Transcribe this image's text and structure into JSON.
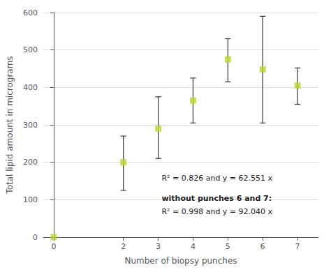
{
  "chart_data": {
    "type": "scatter",
    "xlabel": "Number of biopsy punches",
    "ylabel": "Total lipid amount in micrograms",
    "x": [
      0,
      2,
      3,
      4,
      5,
      6,
      7
    ],
    "values": [
      0,
      200,
      290,
      365,
      475,
      448,
      405
    ],
    "error_low": [
      0,
      75,
      80,
      60,
      60,
      143,
      50
    ],
    "error_high": [
      0,
      70,
      85,
      60,
      55,
      142,
      47
    ],
    "xlim": [
      -0.3,
      7.6
    ],
    "ylim": [
      0,
      600
    ],
    "xticks": [
      0,
      2,
      3,
      4,
      5,
      6,
      7
    ],
    "yticks": [
      0,
      100,
      200,
      300,
      400,
      500,
      600
    ],
    "grid": true,
    "marker": "square",
    "annotations": [
      "R² = 0.826 and y = 62.551 x",
      "without punches 6 and 7:",
      "R² = 0.998 and y = 92.040 x"
    ]
  }
}
